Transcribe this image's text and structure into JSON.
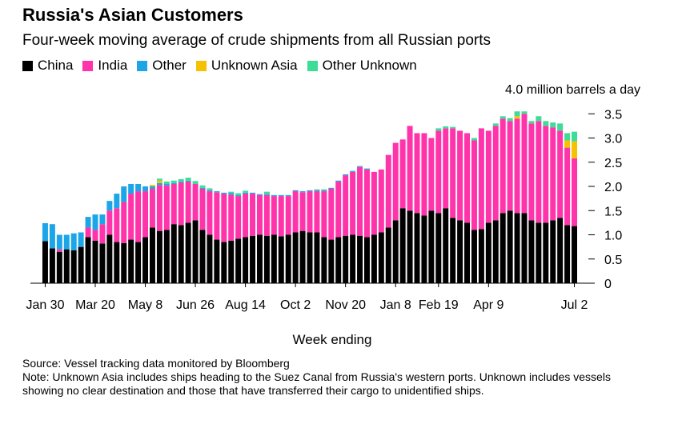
{
  "title": "Russia's Asian Customers",
  "subtitle": "Four-week moving average of crude shipments from all Russian ports",
  "footer": {
    "source": "Source: Vessel tracking data monitored by Bloomberg",
    "note": "Note: Unknown Asia includes ships heading to the Suez Canal from Russia's western ports. Unknown includes vessels showing no clear destination and those that have transferred their cargo to unidentified ships."
  },
  "chart_data": {
    "type": "bar",
    "stacked": true,
    "title": "Russia's Asian Customers",
    "subtitle": "Four-week moving average of crude shipments from all Russian ports",
    "xlabel": "Week ending",
    "ylabel": "4.0 million barrels a day",
    "ylim": [
      0,
      4.0
    ],
    "yticks": [
      0,
      0.5,
      1.0,
      1.5,
      2.0,
      2.5,
      3.0,
      3.5
    ],
    "ytick_labels": [
      "0",
      "0.5",
      "1.0",
      "1.5",
      "2.0",
      "2.5",
      "3.0",
      "3.5"
    ],
    "xtick_labels": [
      {
        "index": 0,
        "label": "Jan 30"
      },
      {
        "index": 7,
        "label": "Mar 20"
      },
      {
        "index": 14,
        "label": "May 8"
      },
      {
        "index": 21,
        "label": "Jun 26"
      },
      {
        "index": 28,
        "label": "Aug 14"
      },
      {
        "index": 35,
        "label": "Oct 2"
      },
      {
        "index": 42,
        "label": "Nov 20"
      },
      {
        "index": 49,
        "label": "Jan 8"
      },
      {
        "index": 55,
        "label": "Feb 19"
      },
      {
        "index": 62,
        "label": "Apr 9"
      },
      {
        "index": 74,
        "label": "Jul 2"
      }
    ],
    "legend_position": "top-left",
    "colors": {
      "China": "#000000",
      "India": "#ff33aa",
      "Other": "#1ca6e8",
      "Unknown Asia": "#f5c100",
      "Other Unknown": "#3ddc97"
    },
    "series": [
      {
        "name": "China",
        "values": [
          0.87,
          0.72,
          0.65,
          0.7,
          0.68,
          0.75,
          0.95,
          0.88,
          0.82,
          1.0,
          0.85,
          0.83,
          0.9,
          0.85,
          0.95,
          1.15,
          1.08,
          1.1,
          1.22,
          1.2,
          1.25,
          1.3,
          1.1,
          1.0,
          0.9,
          0.85,
          0.88,
          0.92,
          0.95,
          0.98,
          1.0,
          0.98,
          1.0,
          0.97,
          1.0,
          1.05,
          1.08,
          1.05,
          1.05,
          0.95,
          0.9,
          0.95,
          0.98,
          1.0,
          0.98,
          0.95,
          1.0,
          1.05,
          1.15,
          1.3,
          1.55,
          1.5,
          1.45,
          1.4,
          1.5,
          1.45,
          1.55,
          1.35,
          1.3,
          1.25,
          1.1,
          1.12,
          1.25,
          1.3,
          1.45,
          1.5,
          1.45,
          1.45,
          1.3,
          1.25,
          1.25,
          1.3,
          1.35,
          1.2,
          1.18
        ]
      },
      {
        "name": "India",
        "values": [
          0.0,
          0.0,
          0.05,
          0.0,
          0.0,
          0.0,
          0.2,
          0.22,
          0.4,
          0.5,
          0.7,
          0.85,
          0.95,
          1.05,
          0.95,
          0.8,
          0.95,
          0.92,
          0.83,
          0.88,
          0.85,
          0.75,
          0.85,
          0.9,
          0.98,
          1.0,
          0.95,
          0.88,
          0.9,
          0.87,
          0.82,
          0.84,
          0.8,
          0.83,
          0.8,
          0.85,
          0.8,
          0.85,
          0.85,
          0.95,
          1.05,
          1.15,
          1.25,
          1.3,
          1.42,
          1.4,
          1.3,
          1.3,
          1.5,
          1.6,
          1.42,
          1.75,
          1.65,
          1.7,
          1.5,
          1.7,
          1.65,
          1.85,
          1.85,
          1.85,
          1.85,
          2.08,
          1.9,
          1.95,
          1.95,
          1.85,
          1.95,
          2.05,
          2.0,
          2.1,
          2.0,
          1.92,
          1.8,
          1.6,
          1.4
        ]
      },
      {
        "name": "Other",
        "values": [
          0.37,
          0.5,
          0.3,
          0.3,
          0.35,
          0.3,
          0.22,
          0.32,
          0.2,
          0.2,
          0.3,
          0.32,
          0.2,
          0.15,
          0.1,
          0.05,
          0.04,
          0.03,
          0.02,
          0.02,
          0.02,
          0.0,
          0.02,
          0.02,
          0.02,
          0.02,
          0.03,
          0.02,
          0.02,
          0.02,
          0.02,
          0.02,
          0.02,
          0.02,
          0.02,
          0.02,
          0.02,
          0.02,
          0.02,
          0.02,
          0.02,
          0.02,
          0.02,
          0.02,
          0.02,
          0.02,
          0.0,
          0.0,
          0.0,
          0.0,
          0.0,
          0.0,
          0.0,
          0.0,
          0.0,
          0.0,
          0.0,
          0.0,
          0.0,
          0.0,
          0.0,
          0.0,
          0.0,
          0.0,
          0.0,
          0.0,
          0.0,
          0.0,
          0.0,
          0.0,
          0.0,
          0.0,
          0.0,
          0.0,
          0.0
        ]
      },
      {
        "name": "Unknown Asia",
        "values": [
          0.0,
          0.0,
          0.0,
          0.0,
          0.0,
          0.0,
          0.0,
          0.0,
          0.0,
          0.0,
          0.0,
          0.0,
          0.0,
          0.0,
          0.0,
          0.03,
          0.05,
          0.0,
          0.0,
          0.0,
          0.0,
          0.0,
          0.0,
          0.0,
          0.0,
          0.0,
          0.0,
          0.0,
          0.0,
          0.0,
          0.0,
          0.0,
          0.0,
          0.0,
          0.0,
          0.0,
          0.0,
          0.0,
          0.0,
          0.0,
          0.0,
          0.0,
          0.0,
          0.0,
          0.0,
          0.0,
          0.0,
          0.0,
          0.0,
          0.0,
          0.0,
          0.0,
          0.0,
          0.0,
          0.0,
          0.0,
          0.0,
          0.0,
          0.0,
          0.0,
          0.0,
          0.0,
          0.0,
          0.0,
          0.0,
          0.0,
          0.05,
          0.0,
          0.0,
          0.0,
          0.0,
          0.0,
          0.0,
          0.15,
          0.35
        ]
      },
      {
        "name": "Other Unknown",
        "values": [
          0.0,
          0.0,
          0.0,
          0.0,
          0.0,
          0.0,
          0.0,
          0.0,
          0.0,
          0.0,
          0.0,
          0.0,
          0.0,
          0.0,
          0.0,
          0.0,
          0.04,
          0.05,
          0.05,
          0.05,
          0.06,
          0.06,
          0.05,
          0.04,
          0.0,
          0.0,
          0.03,
          0.04,
          0.04,
          0.0,
          0.0,
          0.05,
          0.0,
          0.0,
          0.0,
          0.0,
          0.0,
          0.0,
          0.02,
          0.02,
          0.0,
          0.0,
          0.0,
          0.0,
          0.0,
          0.0,
          0.0,
          0.0,
          0.0,
          0.0,
          0.0,
          0.0,
          0.0,
          0.0,
          0.0,
          0.05,
          0.04,
          0.03,
          0.0,
          0.0,
          0.05,
          0.0,
          0.0,
          0.05,
          0.05,
          0.06,
          0.1,
          0.05,
          0.05,
          0.1,
          0.1,
          0.1,
          0.15,
          0.15,
          0.2
        ]
      }
    ]
  }
}
